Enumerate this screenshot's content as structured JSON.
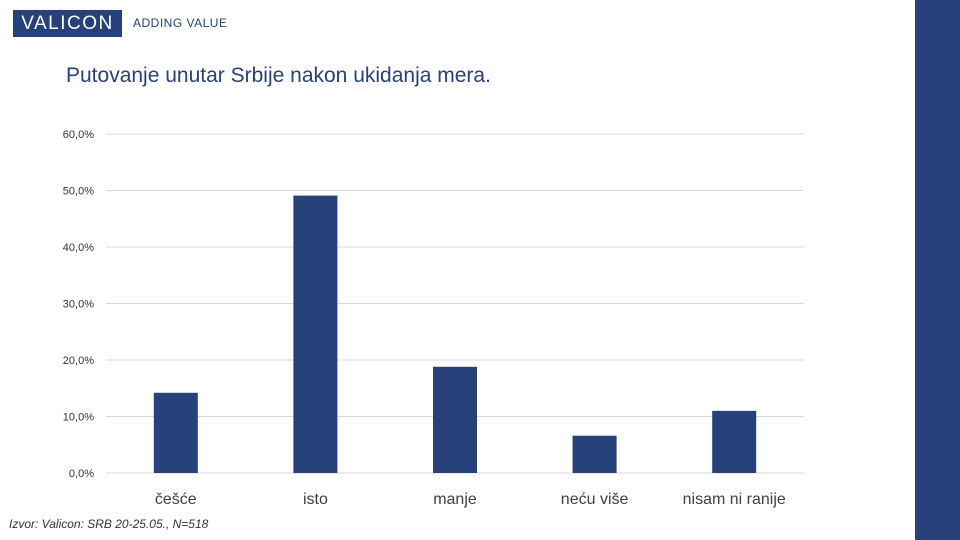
{
  "brand": {
    "logo_text": "VALICON",
    "tagline": "ADDING VALUE",
    "color": "#27417A"
  },
  "slide": {
    "source_note": "Izvor: Valicon: SRB 20-25.05., N=518"
  },
  "chart_data": {
    "type": "bar",
    "title": "Putovanje unutar Srbije nakon ukidanja mera.",
    "categories": [
      "češće",
      "isto",
      "manje",
      "neću više",
      "nisam ni ranije"
    ],
    "values": [
      14.2,
      49.1,
      18.8,
      6.6,
      11.0
    ],
    "value_format": "percent_one_decimal",
    "ylim": [
      0,
      60
    ],
    "yticks": [
      "0,0%",
      "10,0%",
      "20,0%",
      "30,0%",
      "40,0%",
      "50,0%",
      "60,0%"
    ],
    "xlabel": "",
    "ylabel": "",
    "grid": true,
    "legend": "none",
    "bar_color": "#27417A",
    "grid_color": "#D9D9D9"
  }
}
